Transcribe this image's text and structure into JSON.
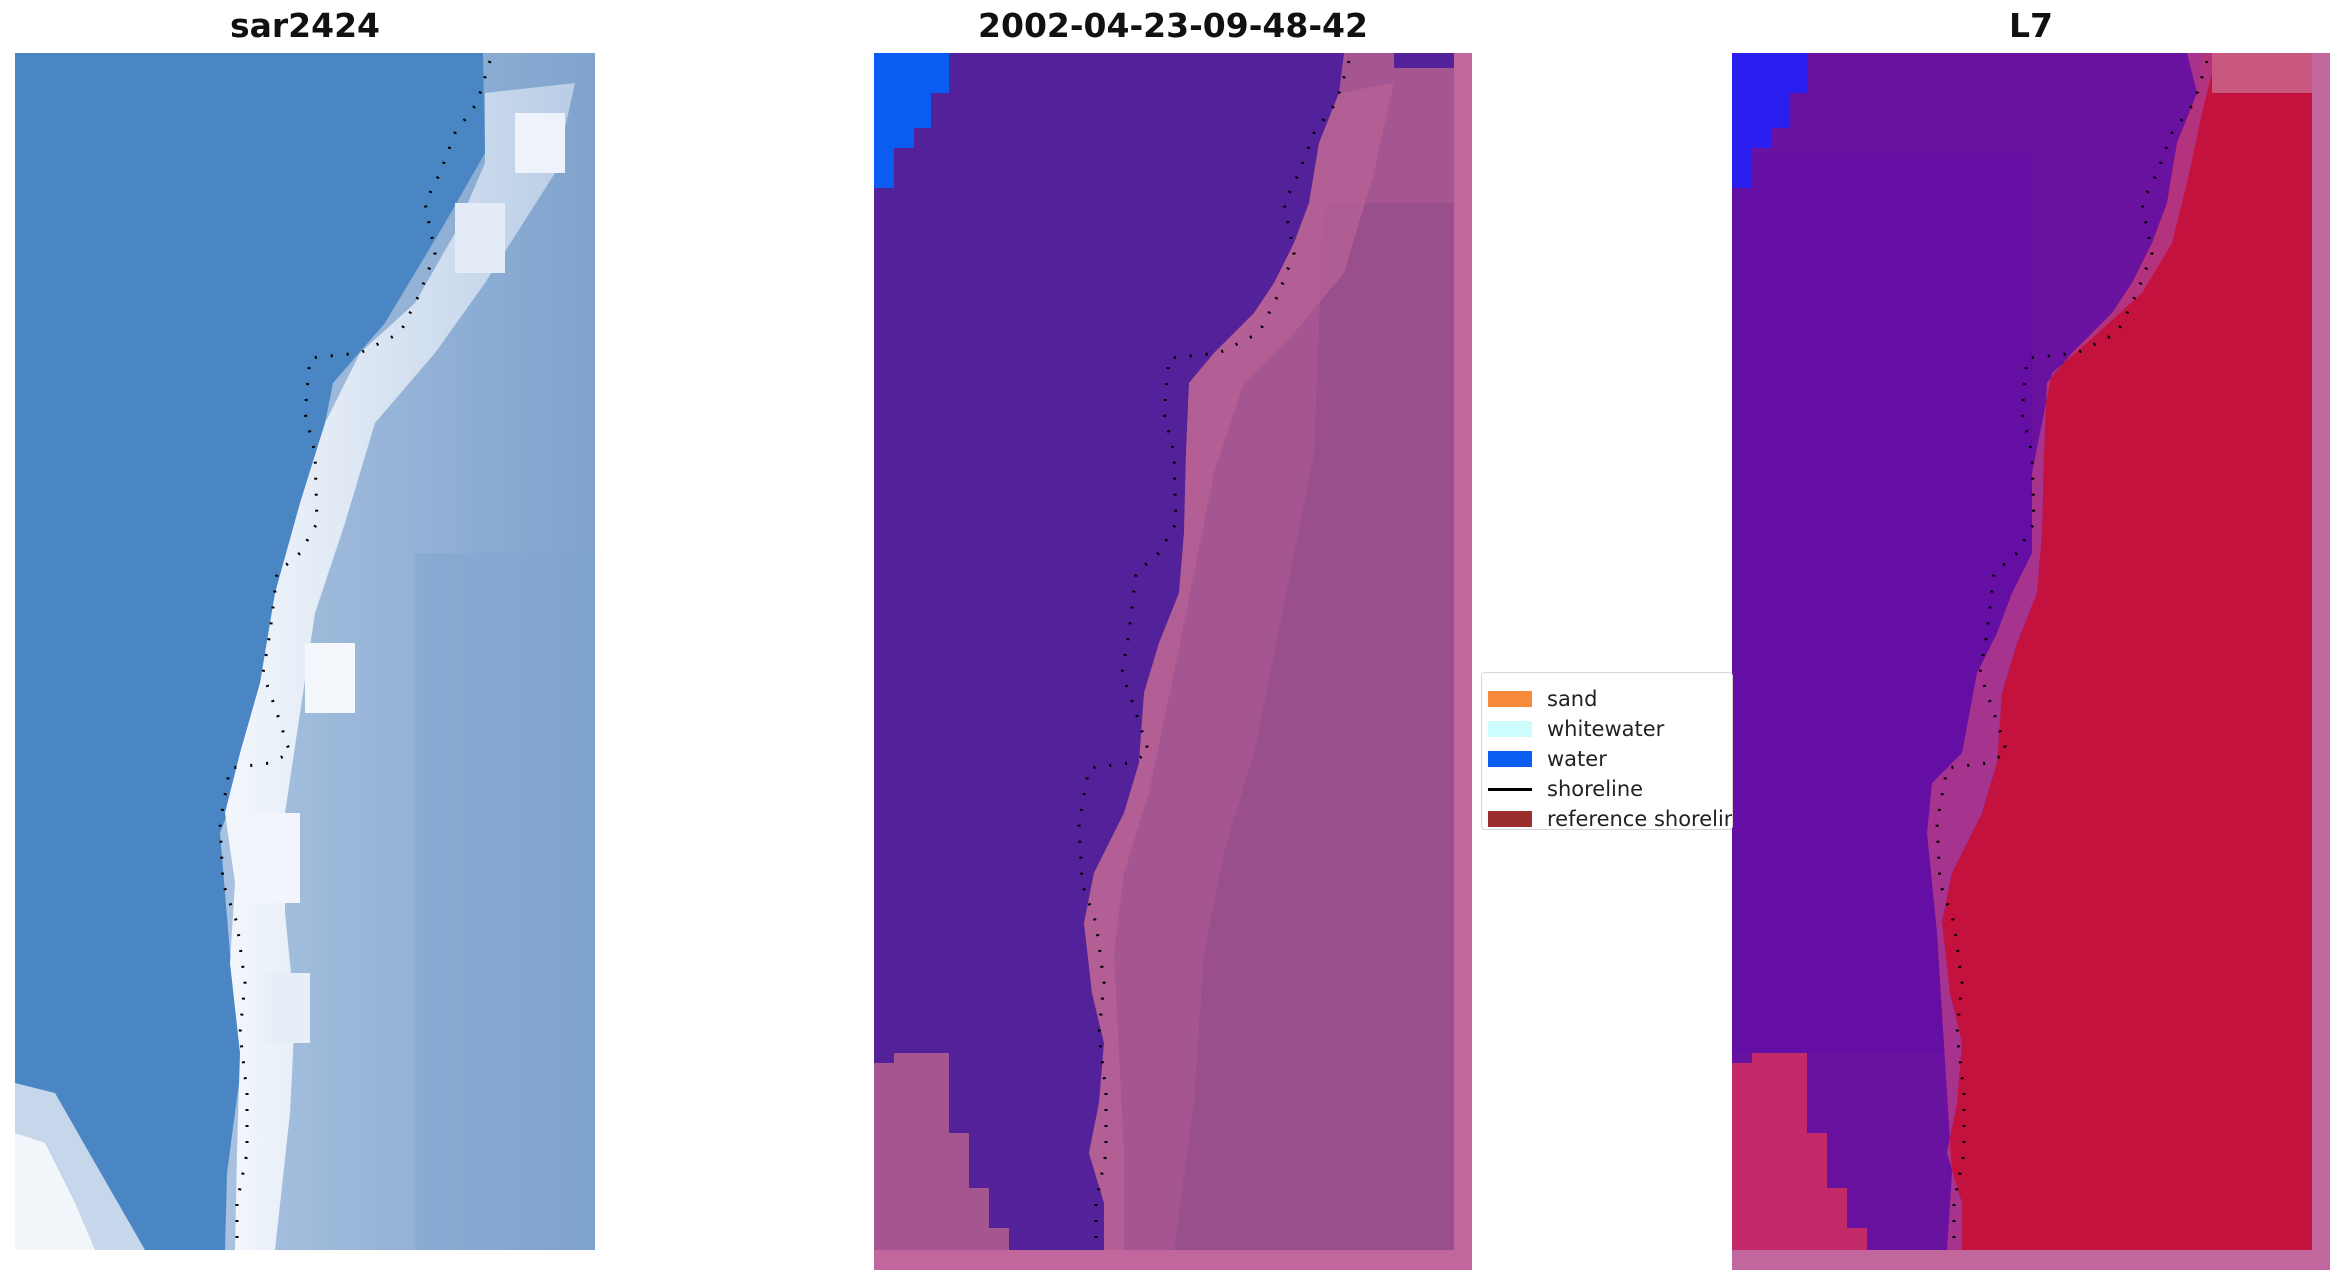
{
  "panels": [
    {
      "title": "sar2424",
      "kind": "rgb-image"
    },
    {
      "title": "2002-04-23-09-48-42",
      "kind": "classification"
    },
    {
      "title": "L7",
      "kind": "index-image"
    }
  ],
  "legend": {
    "items": [
      {
        "label": "sand",
        "color": "#f58a3a",
        "type": "patch"
      },
      {
        "label": "whitewater",
        "color": "#cdfcfc",
        "type": "patch"
      },
      {
        "label": "water",
        "color": "#0b5cf0",
        "type": "patch"
      },
      {
        "label": "shoreline",
        "color": "#000000",
        "type": "line"
      },
      {
        "label": "reference shoreline",
        "color": "#9b2d2d",
        "type": "patch"
      }
    ]
  },
  "colors": {
    "sea_rgb": "#4a86c4",
    "surf_rgb": "#dfe8f5",
    "land_rgb": "#8fafd4",
    "class_water_dark": "#53229a",
    "class_land": "#a5558f",
    "class_frame": "#c2679d",
    "l7_water": "#6a12a0",
    "l7_land": "#c3123e",
    "l7_frame": "#c2679d",
    "blue_patch": "#0b5cf0",
    "blue_patch_l7": "#2a1ef0",
    "shoreline_dots": "#000000"
  }
}
